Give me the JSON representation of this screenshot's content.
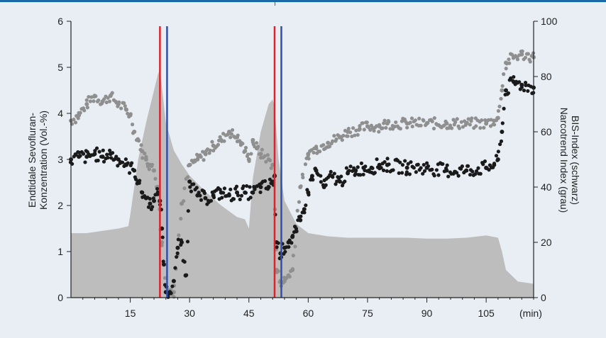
{
  "chart_data": {
    "type": "line",
    "title": "",
    "xlabel": "",
    "x_unit": "(min)",
    "xlim": [
      0,
      117
    ],
    "x_ticks": [
      "15",
      "30",
      "45",
      "60",
      "75",
      "90",
      "105"
    ],
    "x_tick_values": [
      15,
      30,
      45,
      60,
      75,
      90,
      105
    ],
    "ylabel_left": "Endtidale Sevofluran-\nKonzentration (Vol.-%)",
    "ylim_left": [
      0,
      6
    ],
    "y_ticks_left": [
      "0",
      "1",
      "2",
      "3",
      "4",
      "5",
      "6"
    ],
    "ylabel_right": "BIS-Index (schwarz)\nNarcotrend Index (grau)",
    "ylim_right": [
      0,
      100
    ],
    "y_ticks_right": [
      "0",
      "20",
      "40",
      "60",
      "80",
      "100"
    ],
    "grid": false,
    "vertical_markers": [
      {
        "x": 22.5,
        "color": "#e0202a"
      },
      {
        "x": 24.3,
        "color": "#3050a8"
      },
      {
        "x": 51.5,
        "color": "#e0202a"
      },
      {
        "x": 53.2,
        "color": "#3050a8"
      }
    ],
    "series": [
      {
        "axis": "left",
        "render": "area",
        "color": "#bdbdbd",
        "x": [
          0,
          4,
          8,
          12,
          14.5,
          15,
          17,
          19,
          21,
          22,
          22.5,
          24,
          26,
          28,
          30,
          34,
          38,
          42,
          44,
          45,
          46,
          48,
          50,
          51,
          51.5,
          52.5,
          54,
          57,
          60,
          65,
          70,
          75,
          80,
          85,
          90,
          95,
          100,
          105,
          108,
          109,
          110,
          113,
          117
        ],
        "y": [
          1.4,
          1.4,
          1.45,
          1.5,
          1.55,
          1.8,
          3.0,
          3.8,
          4.5,
          4.85,
          4.95,
          3.8,
          3.2,
          2.9,
          2.65,
          2.3,
          2.0,
          1.75,
          1.7,
          1.5,
          2.6,
          3.6,
          4.2,
          4.3,
          4.15,
          3.0,
          2.1,
          1.6,
          1.4,
          1.33,
          1.3,
          1.3,
          1.3,
          1.3,
          1.28,
          1.28,
          1.3,
          1.35,
          1.3,
          1.0,
          0.6,
          0.35,
          0.3
        ]
      },
      {
        "name": "Narcotrend Index (grau)",
        "axis": "right",
        "render": "dots",
        "color": "#8f8f8f",
        "x": [
          0,
          2,
          4,
          6,
          8,
          10,
          12,
          14,
          15,
          16,
          17,
          18,
          19,
          20,
          21,
          22,
          22.5,
          23,
          24,
          25,
          26,
          27,
          28,
          30,
          32,
          34,
          36,
          38,
          40,
          42,
          43,
          44,
          45,
          46,
          47,
          48,
          50,
          51,
          52,
          53,
          54,
          55,
          56,
          58,
          60,
          62,
          65,
          68,
          70,
          73,
          75,
          78,
          80,
          85,
          90,
          95,
          100,
          105,
          107,
          108,
          109,
          110,
          112,
          114,
          117
        ],
        "y": [
          64,
          66,
          70,
          73,
          71,
          73,
          70,
          68,
          66,
          60,
          57,
          53,
          50,
          48,
          46,
          40,
          32,
          20,
          4,
          2,
          2,
          18,
          34,
          48,
          50,
          52,
          55,
          57,
          60,
          58,
          56,
          53,
          50,
          57,
          54,
          52,
          50,
          48,
          10,
          6,
          6,
          8,
          10,
          40,
          52,
          54,
          56,
          58,
          60,
          61,
          62,
          62,
          63,
          63,
          63,
          63,
          63,
          63,
          64,
          65,
          75,
          85,
          87,
          88,
          87
        ]
      },
      {
        "name": "BIS-Index (schwarz)",
        "axis": "right",
        "render": "dots",
        "color": "#1a1a1a",
        "x": [
          0,
          2,
          4,
          6,
          8,
          10,
          12,
          14,
          16,
          17,
          18,
          19,
          20,
          21,
          22,
          22.5,
          23,
          23.5,
          24,
          25,
          26,
          27,
          28,
          29,
          30,
          32,
          34,
          36,
          38,
          40,
          42,
          44,
          46,
          48,
          50,
          51,
          51.5,
          52,
          53,
          54,
          55,
          56,
          57,
          58,
          59,
          60,
          61,
          62,
          64,
          66,
          68,
          70,
          72,
          74,
          76,
          78,
          80,
          85,
          90,
          95,
          100,
          105,
          107,
          108,
          109,
          110,
          112,
          114,
          117
        ],
        "y": [
          50,
          51,
          51,
          52,
          51,
          52,
          50,
          48,
          46,
          42,
          38,
          36,
          34,
          35,
          38,
          35,
          25,
          12,
          2,
          2,
          6,
          18,
          20,
          8,
          42,
          37,
          36,
          37,
          38,
          37,
          38,
          38,
          38,
          40,
          40,
          42,
          44,
          20,
          16,
          18,
          20,
          22,
          24,
          28,
          32,
          38,
          44,
          46,
          40,
          44,
          42,
          45,
          46,
          47,
          47,
          48,
          48,
          47,
          47,
          46,
          46,
          47,
          48,
          50,
          60,
          75,
          78,
          77,
          76
        ]
      }
    ]
  }
}
